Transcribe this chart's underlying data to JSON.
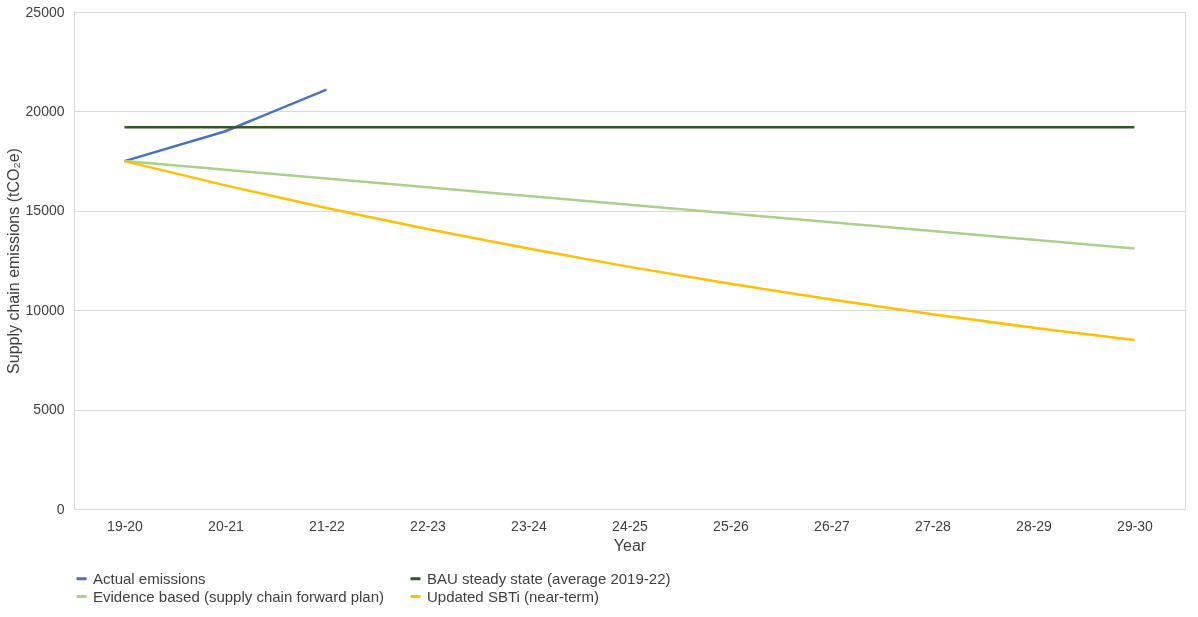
{
  "chart_data": {
    "type": "line",
    "xlabel": "Year",
    "ylabel": "Supply chain emissions (tCO₂e)",
    "categories": [
      "19-20",
      "20-21",
      "21-22",
      "22-23",
      "23-24",
      "24-25",
      "25-26",
      "26-27",
      "27-28",
      "28-29",
      "29-30"
    ],
    "series": [
      {
        "name": "Actual emissions",
        "color": "#4472c4",
        "values": [
          17500,
          19000,
          21100,
          null,
          null,
          null,
          null,
          null,
          null,
          null,
          null
        ]
      },
      {
        "name": "BAU steady state (average 2019-22)",
        "color": "#375623",
        "values": [
          19200,
          19200,
          19200,
          19200,
          19200,
          19200,
          19200,
          19200,
          19200,
          19200,
          19200
        ]
      },
      {
        "name": "Evidence based (supply chain forward plan)",
        "color": "#a9d18e",
        "values": [
          17500,
          17060,
          16620,
          16180,
          15740,
          15300,
          14860,
          14420,
          13980,
          13540,
          13100
        ]
      },
      {
        "name": "Updated SBTi (near-term)",
        "color": "#ffc000",
        "values": [
          17500,
          16280,
          15140,
          14080,
          13100,
          12180,
          11330,
          10540,
          9800,
          9120,
          8500
        ]
      }
    ],
    "ylim": [
      0,
      25000
    ],
    "yticks": [
      0,
      5000,
      10000,
      15000,
      20000,
      25000
    ],
    "grid": "y",
    "legend": "bottom",
    "marker": "none",
    "line_style": "solid"
  }
}
